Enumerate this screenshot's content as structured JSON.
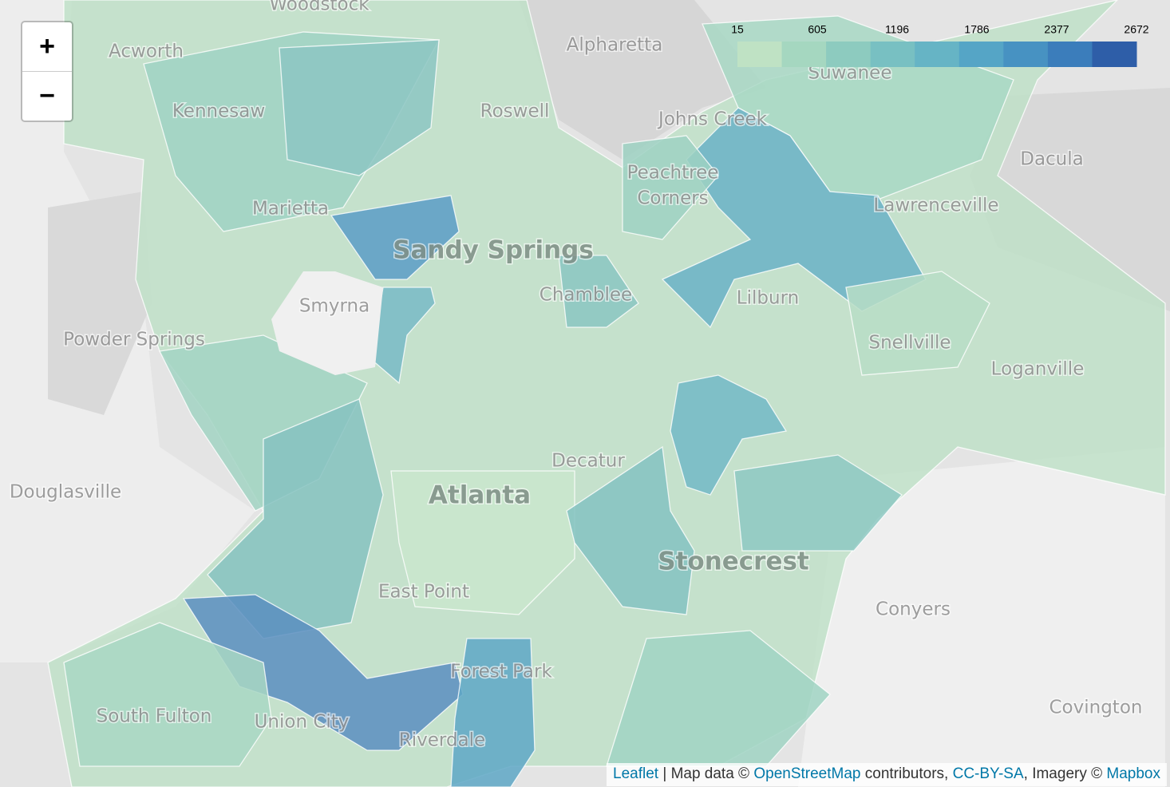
{
  "zoom": {
    "in": "+",
    "out": "−"
  },
  "legend": {
    "ticks": [
      15,
      605,
      1196,
      1786,
      2377,
      2672
    ],
    "colors": [
      "#bfe2c4",
      "#a5d7c0",
      "#8dcbbf",
      "#78c0c2",
      "#66b4c5",
      "#55a5c6",
      "#4792c2",
      "#3b7dbb",
      "#2e5ea8"
    ]
  },
  "places": [
    "Woodstock",
    "Acworth",
    "Alpharetta",
    "Suwanee",
    "Kennesaw",
    "Roswell",
    "Johns Creek",
    "Dacula",
    "Marietta",
    "Peachtree",
    "Corners",
    "Lawrenceville",
    "Sandy Springs",
    "Smyrna",
    "Chamblee",
    "Lilburn",
    "Powder Springs",
    "Snellville",
    "Loganville",
    "Douglasville",
    "Decatur",
    "Atlanta",
    "Stonecrest",
    "East Point",
    "Conyers",
    "Forest Park",
    "South Fulton",
    "Union City",
    "Riverdale",
    "Covington"
  ],
  "attribution": {
    "leaflet": "Leaflet",
    "sep": " | ",
    "map_data": "Map data © ",
    "osm": "OpenStreetMap",
    "contributors": " contributors, ",
    "license": "CC-BY-SA",
    "imagery": ", Imagery © ",
    "mapbox": "Mapbox"
  }
}
